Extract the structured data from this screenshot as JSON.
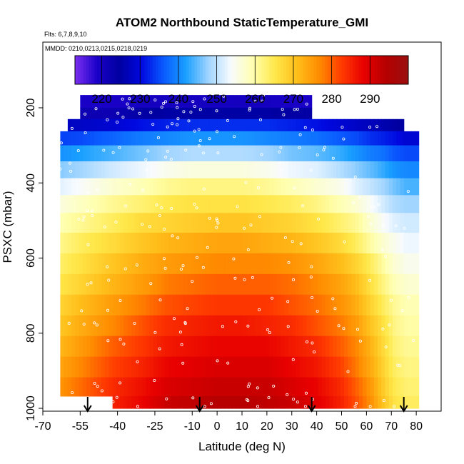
{
  "chart_data": {
    "type": "heatmap",
    "title": "ATOM2 Northbound StaticTemperature_GMI",
    "subtitle_flights": "Flts: 6,7,8,9,10",
    "subtitle_dates": "MMDD: 0210,0213,0215,0218,0219",
    "xlabel": "Latitude (deg N)",
    "ylabel": "PSXC (mbar)",
    "xlim": [
      -70,
      90
    ],
    "ylim": [
      1000,
      0
    ],
    "x_tick_labels": [
      "-70",
      "-55",
      "-40",
      "-25",
      "-10",
      "0",
      "10",
      "20",
      "30",
      "40",
      "50",
      "60",
      "70",
      "80"
    ],
    "x_tick_values": [
      -70,
      -55,
      -40,
      -25,
      -10,
      0,
      10,
      20,
      30,
      40,
      50,
      60,
      70,
      80
    ],
    "y_tick_labels": [
      "200",
      "400",
      "600",
      "800",
      "1000"
    ],
    "y_tick_values": [
      200,
      400,
      600,
      800,
      1000
    ],
    "colorbar": {
      "min": 213,
      "max": 300,
      "tick_labels": [
        "220",
        "230",
        "240",
        "250",
        "260",
        "270",
        "280",
        "290"
      ],
      "tick_values": [
        220,
        230,
        240,
        250,
        260,
        270,
        280,
        290
      ],
      "colors": [
        "#7b2ff0",
        "#1a00c8",
        "#0000a0",
        "#0008e0",
        "#0a5bff",
        "#1aa0ff",
        "#9fd4ff",
        "#f7fbff",
        "#ffffb0",
        "#ffe84a",
        "#ffbe1a",
        "#ff8c00",
        "#ff3a00",
        "#e80000",
        "#b50000",
        "#9a1010"
      ]
    },
    "pressure_levels": [
      185,
      215,
      245,
      280,
      320,
      365,
      410,
      455,
      505,
      560,
      615,
      670,
      725,
      780,
      835,
      890,
      945,
      990
    ],
    "latitude_profile_points": [
      -68,
      -55,
      -42,
      -30,
      -20,
      -10,
      0,
      10,
      20,
      30,
      40,
      50,
      56,
      62,
      67,
      71,
      76
    ],
    "temperature_grid": [
      [
        219,
        219,
        219,
        220,
        220,
        220,
        220,
        220,
        220,
        219,
        219,
        218,
        218,
        218,
        218,
        218,
        218
      ],
      [
        222,
        222,
        222,
        224,
        225,
        225,
        225,
        225,
        225,
        224,
        224,
        223,
        222,
        222,
        222,
        221,
        220
      ],
      [
        227,
        228,
        229,
        231,
        232,
        233,
        233,
        233,
        233,
        232,
        231,
        229,
        228,
        227,
        226,
        225,
        224
      ],
      [
        234,
        235,
        237,
        239,
        240,
        241,
        241,
        241,
        240,
        239,
        238,
        236,
        235,
        233,
        232,
        231,
        229
      ],
      [
        240,
        242,
        244,
        246,
        248,
        249,
        249,
        249,
        248,
        246,
        245,
        243,
        241,
        239,
        238,
        236,
        235
      ],
      [
        246,
        248,
        251,
        253,
        255,
        256,
        256,
        256,
        255,
        253,
        252,
        249,
        247,
        245,
        243,
        241,
        240
      ],
      [
        251,
        254,
        257,
        259,
        261,
        262,
        262,
        262,
        261,
        259,
        257,
        255,
        252,
        250,
        248,
        246,
        244
      ],
      [
        255,
        258,
        261,
        263,
        265,
        266,
        266,
        266,
        265,
        264,
        262,
        259,
        257,
        254,
        251,
        249,
        248
      ],
      [
        258,
        261,
        264,
        267,
        268,
        269,
        270,
        270,
        269,
        268,
        266,
        263,
        261,
        257,
        254,
        252,
        251
      ],
      [
        260,
        264,
        267,
        270,
        272,
        273,
        274,
        274,
        273,
        272,
        270,
        267,
        264,
        260,
        257,
        255,
        253
      ],
      [
        262,
        266,
        270,
        273,
        275,
        276,
        277,
        277,
        277,
        276,
        274,
        271,
        268,
        264,
        260,
        257,
        255
      ],
      [
        264,
        268,
        272,
        275,
        278,
        279,
        280,
        280,
        280,
        279,
        277,
        274,
        271,
        266,
        262,
        259,
        257
      ],
      [
        266,
        271,
        275,
        278,
        281,
        282,
        283,
        283,
        283,
        281,
        279,
        276,
        273,
        268,
        264,
        261,
        259
      ],
      [
        268,
        273,
        277,
        281,
        284,
        285,
        286,
        286,
        285,
        284,
        281,
        278,
        275,
        270,
        266,
        262,
        260
      ],
      [
        270,
        275,
        280,
        283,
        286,
        287,
        288,
        288,
        288,
        286,
        284,
        280,
        277,
        272,
        267,
        263,
        261
      ],
      [
        272,
        277,
        282,
        285,
        288,
        289,
        290,
        290,
        290,
        288,
        286,
        282,
        278,
        273,
        268,
        264,
        262
      ],
      [
        274,
        279,
        284,
        287,
        290,
        291,
        292,
        292,
        292,
        290,
        288,
        284,
        280,
        275,
        269,
        265,
        263
      ],
      [
        275,
        280,
        285,
        288,
        292,
        293,
        294,
        294,
        293,
        292,
        289,
        285,
        281,
        276,
        270,
        266,
        264
      ]
    ],
    "coverage_by_level": [
      [
        -55,
        38
      ],
      [
        -55,
        38
      ],
      [
        -60,
        75
      ],
      [
        -63,
        80
      ],
      [
        -63,
        80
      ],
      [
        -63,
        80
      ],
      [
        -63,
        80
      ],
      [
        -63,
        80
      ],
      [
        -63,
        80
      ],
      [
        -63,
        80
      ],
      [
        -63,
        80
      ],
      [
        -63,
        80
      ],
      [
        -63,
        80
      ],
      [
        -63,
        80
      ],
      [
        -63,
        80
      ],
      [
        -63,
        80
      ],
      [
        -63,
        80
      ],
      [
        -42,
        80
      ]
    ],
    "arrow_latitudes": [
      -52,
      -7,
      38,
      75
    ],
    "grid": false,
    "legend_position": "top (horizontal color bar)"
  }
}
